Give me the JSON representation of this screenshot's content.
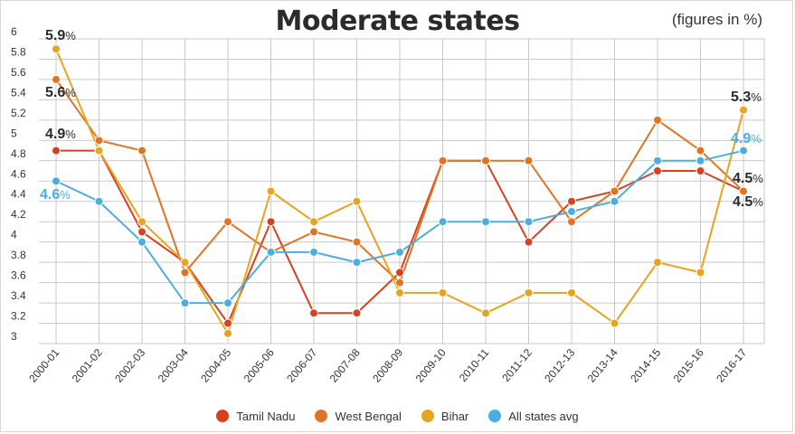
{
  "header": {
    "title": "Moderate states",
    "note": "(figures in %)"
  },
  "chart_data": {
    "type": "line",
    "title": "Moderate states",
    "subtitle": "(figures in %)",
    "xlabel": "",
    "ylabel": "",
    "ylim": [
      3,
      6
    ],
    "yticks": [
      "3",
      "3.2",
      "3.4",
      "3.6",
      "3.8",
      "4",
      "4.2",
      "4.4",
      "4.6",
      "4.8",
      "5",
      "5.2",
      "5.4",
      "5.6",
      "5.8",
      "6"
    ],
    "grid": true,
    "legend_position": "bottom",
    "categories": [
      "2000-01",
      "2001-02",
      "2002-03",
      "2003-04",
      "2004-05",
      "2005-06",
      "2006-07",
      "2007-08",
      "2008-09",
      "2009-10",
      "2010-11",
      "2011-12",
      "2012-13",
      "2013-14",
      "2014-15",
      "2015-16",
      "2016-17"
    ],
    "series": [
      {
        "name": "Tamil Nadu",
        "color": "#d8401f",
        "values": [
          4.9,
          4.9,
          4.1,
          3.8,
          3.2,
          4.2,
          3.3,
          3.3,
          3.7,
          4.8,
          4.8,
          4.0,
          4.4,
          4.5,
          4.7,
          4.7,
          4.5
        ]
      },
      {
        "name": "West Bengal",
        "color": "#e07422",
        "values": [
          5.6,
          5.0,
          4.9,
          3.7,
          4.2,
          3.9,
          4.1,
          4.0,
          3.6,
          4.8,
          4.8,
          4.8,
          4.2,
          4.5,
          5.2,
          4.9,
          4.5
        ]
      },
      {
        "name": "Bihar",
        "color": "#e6a41f",
        "values": [
          5.9,
          4.9,
          4.2,
          3.8,
          3.1,
          4.5,
          4.2,
          4.4,
          3.5,
          3.5,
          3.3,
          3.5,
          3.5,
          3.2,
          3.8,
          3.7,
          5.3
        ]
      },
      {
        "name": "All states avg",
        "color": "#4aaee0",
        "values": [
          4.6,
          4.4,
          4.0,
          3.4,
          3.4,
          3.9,
          3.9,
          3.8,
          3.9,
          4.2,
          4.2,
          4.2,
          4.3,
          4.4,
          4.8,
          4.8,
          4.9
        ]
      }
    ],
    "annotations": [
      {
        "text": "5.9%",
        "color": "#2b2b2b"
      },
      {
        "text": "5.6%",
        "color": "#2b2b2b"
      },
      {
        "text": "4.9%",
        "color": "#2b2b2b"
      },
      {
        "text": "4.6%",
        "color": "#4aaee0"
      },
      {
        "text": "5.3%",
        "color": "#2b2b2b"
      },
      {
        "text": "4.9%",
        "color": "#4aaee0"
      },
      {
        "text": "4.5%",
        "color": "#2b2b2b"
      },
      {
        "text": "4.5%",
        "color": "#2b2b2b"
      }
    ]
  }
}
